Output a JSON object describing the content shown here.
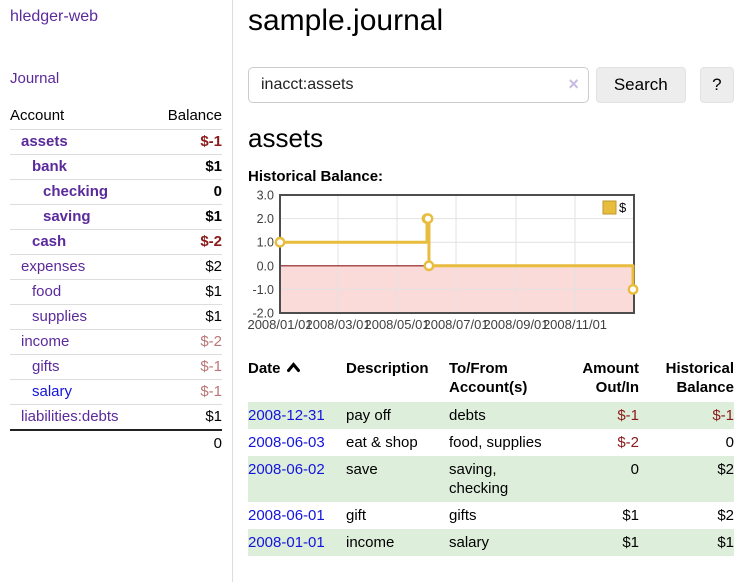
{
  "app": {
    "title": "hledger-web",
    "nav_journal": "Journal"
  },
  "colors": {
    "link_purple": "#5b2a9b",
    "link_blue": "#1414dd",
    "negative_strong": "#8b1a1a",
    "negative_muted": "#ba7676",
    "row_stripe_green": "#ddeedb",
    "button_gray": "#ededed"
  },
  "sidebar": {
    "accounts_header": {
      "account": "Account",
      "balance": "Balance"
    },
    "accounts": [
      {
        "name": "assets",
        "depth": 1,
        "bold": true,
        "name_style": "purple",
        "balance": "$-1",
        "balance_style": "neg"
      },
      {
        "name": "bank",
        "depth": 2,
        "bold": true,
        "name_style": "purple",
        "balance": "$1",
        "balance_style": "pos"
      },
      {
        "name": "checking",
        "depth": 3,
        "bold": true,
        "name_style": "purple",
        "balance": "0",
        "balance_style": "pos"
      },
      {
        "name": "saving",
        "depth": 3,
        "bold": true,
        "name_style": "purple",
        "balance": "$1",
        "balance_style": "pos"
      },
      {
        "name": "cash",
        "depth": 2,
        "bold": true,
        "name_style": "purple",
        "balance": "$-2",
        "balance_style": "neg"
      },
      {
        "name": "expenses",
        "depth": 1,
        "bold": false,
        "name_style": "purple",
        "balance": "$2",
        "balance_style": "pos"
      },
      {
        "name": "food",
        "depth": 2,
        "bold": false,
        "name_style": "purple",
        "balance": "$1",
        "balance_style": "pos"
      },
      {
        "name": "supplies",
        "depth": 2,
        "bold": false,
        "name_style": "purple",
        "balance": "$1",
        "balance_style": "pos"
      },
      {
        "name": "income",
        "depth": 1,
        "bold": false,
        "name_style": "purple",
        "balance": "$-2",
        "balance_style": "negmuted"
      },
      {
        "name": "gifts",
        "depth": 2,
        "bold": false,
        "name_style": "purple",
        "balance": "$-1",
        "balance_style": "negmuted"
      },
      {
        "name": "salary",
        "depth": 2,
        "bold": false,
        "name_style": "blue",
        "balance": "$-1",
        "balance_style": "negmuted"
      },
      {
        "name": "liabilities:debts",
        "depth": 1,
        "bold": false,
        "name_style": "purple",
        "balance": "$1",
        "balance_style": "pos"
      }
    ],
    "total": "0"
  },
  "header": {
    "title": "sample.journal"
  },
  "search": {
    "value": "inacct:assets",
    "clear_icon": "×",
    "button": "Search",
    "help_button": "?"
  },
  "account_page": {
    "heading": "assets",
    "chart_label": "Historical Balance:"
  },
  "chart_data": {
    "type": "line",
    "title": "Historical Balance",
    "series": [
      {
        "name": "$",
        "step": true,
        "points": [
          [
            "2008-01-01",
            1
          ],
          [
            "2008-06-01",
            2
          ],
          [
            "2008-06-02",
            2
          ],
          [
            "2008-06-03",
            0
          ],
          [
            "2008-12-31",
            -1
          ]
        ]
      }
    ],
    "x_range": [
      "2008-01-01",
      "2009-01-01"
    ],
    "ylim": [
      -2,
      3
    ],
    "yticks": [
      {
        "value": 3,
        "label": "3.0"
      },
      {
        "value": 2,
        "label": "2.0"
      },
      {
        "value": 1,
        "label": "1.0"
      },
      {
        "value": 0,
        "label": "0.0"
      },
      {
        "value": -1,
        "label": "-1.0"
      },
      {
        "value": -2,
        "label": "-2.0"
      }
    ],
    "xticks": [
      {
        "date": "2008-01-01",
        "label": "2008/01/01"
      },
      {
        "date": "2008-03-01",
        "label": "2008/03/01"
      },
      {
        "date": "2008-05-01",
        "label": "2008/05/01"
      },
      {
        "date": "2008-07-01",
        "label": "2008/07/01"
      },
      {
        "date": "2008-09-01",
        "label": "2008/09/01"
      },
      {
        "date": "2008-11-01",
        "label": "2008/11/01"
      }
    ],
    "legend": {
      "label": "$",
      "position": "top-right"
    },
    "grid": true,
    "colors": {
      "series": "#e8bc3c",
      "marker_fill": "#ffffff",
      "zero_line": "#8b1a1a",
      "negative_region": "#fbdada",
      "grid": "#e2e2e2",
      "border": "#4d4d4d",
      "tick_text": "#3f3f3f",
      "legend_swatch_border": "#bd9a28"
    }
  },
  "transactions": {
    "columns": [
      "Date",
      "Description",
      "To/From\nAccount(s)",
      "Amount\nOut/In",
      "Historical\nBalance"
    ],
    "sort": {
      "column": "Date",
      "direction": "ascending"
    },
    "rows": [
      {
        "date": "2008-12-31",
        "description": "pay off",
        "accounts": "debts",
        "amount": "$-1",
        "balance": "$-1"
      },
      {
        "date": "2008-06-03",
        "description": "eat & shop",
        "accounts": "food, supplies",
        "amount": "$-2",
        "balance": "0"
      },
      {
        "date": "2008-06-02",
        "description": "save",
        "accounts": "saving, checking",
        "amount": "0",
        "balance": "$2"
      },
      {
        "date": "2008-06-01",
        "description": "gift",
        "accounts": "gifts",
        "amount": "$1",
        "balance": "$2"
      },
      {
        "date": "2008-01-01",
        "description": "income",
        "accounts": "salary",
        "amount": "$1",
        "balance": "$1"
      }
    ]
  }
}
